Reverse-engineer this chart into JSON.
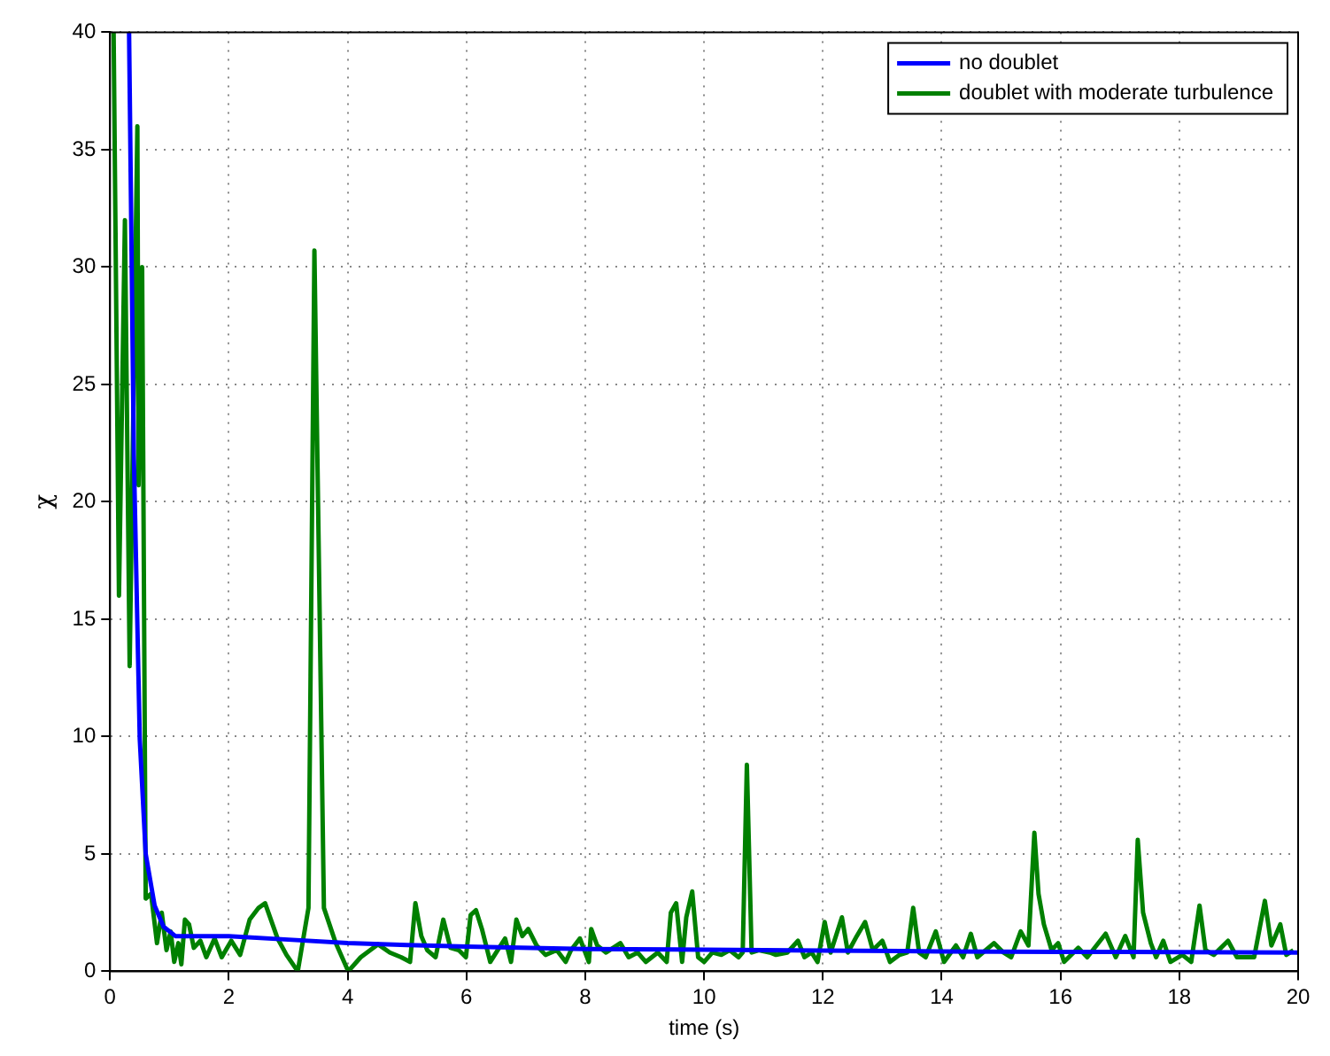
{
  "chart_data": {
    "type": "line",
    "xlabel": "time (s)",
    "ylabel": "χ",
    "xlim": [
      0,
      20
    ],
    "ylim": [
      0,
      40
    ],
    "xticks": [
      0,
      2,
      4,
      6,
      8,
      10,
      12,
      14,
      16,
      18,
      20
    ],
    "yticks": [
      0,
      5,
      10,
      15,
      20,
      25,
      30,
      35,
      40
    ],
    "grid": true,
    "legend": "top right",
    "line_style": "solid",
    "marker": "none",
    "series": [
      {
        "name": "no doublet",
        "color": "#0000ff",
        "x": [
          0.32,
          0.4,
          0.5,
          0.6,
          0.75,
          0.9,
          1.1,
          1.5,
          2,
          3,
          4,
          5,
          6,
          8,
          10,
          12,
          14,
          16,
          18,
          20
        ],
        "values": [
          40,
          22,
          9.9,
          5,
          2.8,
          1.9,
          1.5,
          1.5,
          1.5,
          1.35,
          1.2,
          1.12,
          1.05,
          0.95,
          0.92,
          0.88,
          0.85,
          0.83,
          0.82,
          0.8
        ]
      },
      {
        "name": "doublet with moderate turbulence",
        "color": "#008000",
        "x": [
          0.06,
          0.15,
          0.25,
          0.33,
          0.46,
          0.48,
          0.54,
          0.6,
          0.69,
          0.79,
          0.87,
          0.95,
          1.02,
          1.08,
          1.15,
          1.2,
          1.26,
          1.33,
          1.41,
          1.52,
          1.62,
          1.76,
          1.88,
          2.04,
          2.19,
          2.35,
          2.5,
          2.61,
          2.82,
          2.97,
          3.16,
          3.34,
          3.44,
          3.6,
          3.8,
          4.01,
          4.22,
          4.51,
          4.71,
          4.9,
          5.05,
          5.14,
          5.24,
          5.34,
          5.48,
          5.61,
          5.73,
          5.87,
          5.99,
          6.07,
          6.16,
          6.26,
          6.4,
          6.55,
          6.65,
          6.75,
          6.84,
          6.94,
          7.04,
          7.18,
          7.33,
          7.52,
          7.67,
          7.76,
          7.91,
          8.06,
          8.1,
          8.2,
          8.35,
          8.59,
          8.73,
          8.88,
          9.02,
          9.22,
          9.37,
          9.44,
          9.53,
          9.63,
          9.7,
          9.8,
          9.9,
          10.0,
          10.14,
          10.29,
          10.43,
          10.58,
          10.65,
          10.72,
          10.8,
          10.92,
          11.11,
          11.21,
          11.4,
          11.58,
          11.69,
          11.81,
          11.91,
          12.03,
          12.13,
          12.32,
          12.42,
          12.57,
          12.71,
          12.84,
          13.0,
          13.13,
          13.29,
          13.42,
          13.52,
          13.62,
          13.73,
          13.9,
          14.04,
          14.24,
          14.36,
          14.49,
          14.6,
          14.88,
          15.04,
          15.17,
          15.33,
          15.46,
          15.56,
          15.63,
          15.72,
          15.85,
          15.96,
          16.06,
          16.3,
          16.45,
          16.76,
          16.93,
          17.09,
          17.23,
          17.3,
          17.39,
          17.52,
          17.61,
          17.73,
          17.85,
          18.05,
          18.2,
          18.34,
          18.44,
          18.58,
          18.82,
          18.97,
          19.26,
          19.44,
          19.55,
          19.7,
          19.8,
          19.92
        ],
        "values": [
          40,
          16,
          32,
          13,
          36,
          20.7,
          30,
          3.1,
          3.3,
          1.2,
          2.5,
          0.9,
          1.7,
          0.4,
          1.2,
          0.3,
          2.2,
          2.0,
          1.0,
          1.3,
          0.6,
          1.4,
          0.6,
          1.3,
          0.7,
          2.2,
          2.7,
          2.9,
          1.4,
          0.7,
          0,
          2.7,
          30.7,
          2.7,
          1.2,
          0,
          0.6,
          1.15,
          0.8,
          0.6,
          0.4,
          2.9,
          1.5,
          0.9,
          0.6,
          2.2,
          1.0,
          0.9,
          0.6,
          2.4,
          2.6,
          1.8,
          0.4,
          1.0,
          1.4,
          0.4,
          2.2,
          1.5,
          1.8,
          1.1,
          0.7,
          0.9,
          0.4,
          0.9,
          1.4,
          0.4,
          1.8,
          1.1,
          0.8,
          1.2,
          0.6,
          0.8,
          0.4,
          0.8,
          0.4,
          2.5,
          2.9,
          0.4,
          2.3,
          3.4,
          0.6,
          0.4,
          0.8,
          0.7,
          0.9,
          0.6,
          0.8,
          8.8,
          0.8,
          0.9,
          0.8,
          0.7,
          0.8,
          1.3,
          0.6,
          0.8,
          0.4,
          2.1,
          0.8,
          2.3,
          0.8,
          1.5,
          2.1,
          0.9,
          1.3,
          0.4,
          0.7,
          0.8,
          2.7,
          0.8,
          0.6,
          1.7,
          0.4,
          1.1,
          0.6,
          1.6,
          0.6,
          1.2,
          0.8,
          0.6,
          1.7,
          1.1,
          5.9,
          3.3,
          2.0,
          0.9,
          1.2,
          0.4,
          1.0,
          0.6,
          1.6,
          0.6,
          1.5,
          0.6,
          5.6,
          2.5,
          1.2,
          0.6,
          1.3,
          0.4,
          0.7,
          0.4,
          2.8,
          0.9,
          0.7,
          1.3,
          0.6,
          0.6,
          3.0,
          1.1,
          2.0,
          0.7,
          0.9
        ]
      }
    ]
  }
}
